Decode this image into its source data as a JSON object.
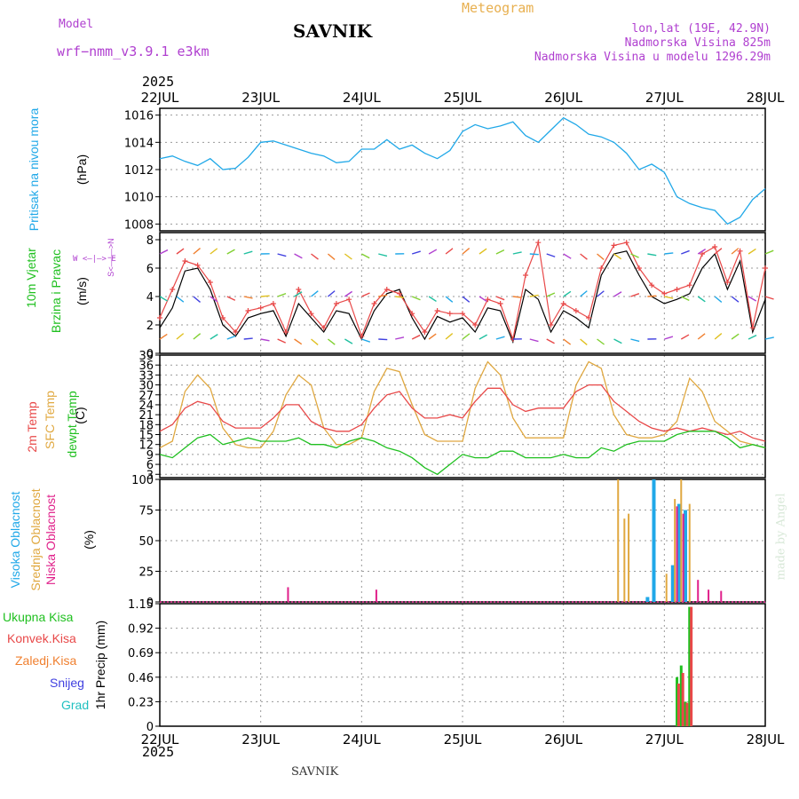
{
  "header": {
    "model_label": "Model",
    "model_name": "wrf−nmm_v3.9.1  e3km",
    "title": "SAVNIK",
    "meteogram": "Meteogram",
    "lonlat": "lon,lat (19E, 42.9N)",
    "elev": "Nadmorska Visina 825m",
    "elev_model": "Nadmorska Visina u modelu 1296.29m",
    "year_top": "2025",
    "year_bottom": "2025",
    "footer": "SAVNIK",
    "credit": "made by Angel"
  },
  "colors": {
    "pressure": "#20a8e8",
    "wind_label": "#20c020",
    "temp2m": "#e84848",
    "sfc": "#e0a840",
    "dewp": "#20c020",
    "cloud_high": "#20a8e8",
    "cloud_mid": "#e0a840",
    "cloud_low": "#e0208a",
    "rain_total": "#20c020",
    "rain_conv": "#e84848",
    "rain_strat": "#f08030",
    "snow": "#4040e0",
    "grad": "#20c0c0",
    "purple": "#b040d0"
  },
  "x_days": [
    "22JUL",
    "23JUL",
    "24JUL",
    "25JUL",
    "26JUL",
    "27JUL",
    "28JUL"
  ],
  "chart_data": [
    {
      "type": "line",
      "title": "Pritisak na nivou mora",
      "ylabel": "(hPa)",
      "ylim": [
        1007.5,
        1016.5
      ],
      "yticks": [
        1008,
        1010,
        1012,
        1014,
        1016
      ],
      "x_unit": "hours from 22JUL 00UTC",
      "series": [
        {
          "name": "Pritisak na nivou mora",
          "x": [
            0,
            3,
            6,
            9,
            12,
            15,
            18,
            21,
            24,
            27,
            30,
            33,
            36,
            39,
            42,
            45,
            48,
            51,
            54,
            57,
            60,
            63,
            66,
            69,
            72,
            75,
            78,
            81,
            84,
            87,
            90,
            93,
            96,
            99,
            102,
            105,
            108,
            111,
            114,
            117,
            120,
            123,
            126,
            129,
            132,
            135,
            138,
            141,
            144
          ],
          "values": [
            1012.8,
            1013.0,
            1012.6,
            1012.3,
            1012.8,
            1012.0,
            1012.1,
            1012.9,
            1014.0,
            1014.1,
            1013.8,
            1013.5,
            1013.2,
            1013.0,
            1012.5,
            1012.6,
            1013.5,
            1013.5,
            1014.2,
            1013.5,
            1013.8,
            1013.2,
            1012.8,
            1013.4,
            1014.8,
            1015.3,
            1015.0,
            1015.2,
            1015.5,
            1014.5,
            1014.0,
            1014.9,
            1015.8,
            1015.3,
            1014.6,
            1014.4,
            1014.0,
            1013.2,
            1012.0,
            1012.4,
            1011.8,
            1010.0,
            1009.5,
            1009.2,
            1009.0,
            1008.0,
            1008.5,
            1009.8,
            1010.6
          ]
        }
      ]
    },
    {
      "type": "line",
      "title": "10m Vjetar Brzina i Pravac",
      "ylabel": "(m/s)",
      "ylim": [
        0,
        8.5
      ],
      "yticks": [
        0,
        2,
        4,
        6,
        8
      ],
      "legend": [
        "W",
        "E",
        "N",
        "S"
      ],
      "series": [
        {
          "name": "Brzina",
          "x": [
            0,
            3,
            6,
            9,
            12,
            15,
            18,
            21,
            24,
            27,
            30,
            33,
            36,
            39,
            42,
            45,
            48,
            51,
            54,
            57,
            60,
            63,
            66,
            69,
            72,
            75,
            78,
            81,
            84,
            87,
            90,
            93,
            96,
            99,
            102,
            105,
            108,
            111,
            114,
            117,
            120,
            123,
            126,
            129,
            132,
            135,
            138,
            141,
            144
          ],
          "values": [
            1.8,
            3.2,
            5.8,
            6.0,
            4.5,
            2.0,
            1.2,
            2.5,
            2.8,
            3.0,
            1.2,
            3.5,
            2.5,
            1.5,
            3.0,
            2.8,
            1.0,
            3.0,
            4.2,
            4.5,
            2.5,
            1.0,
            2.6,
            2.2,
            2.5,
            1.5,
            3.2,
            3.0,
            0.8,
            4.5,
            3.8,
            1.5,
            3.0,
            2.5,
            1.8,
            5.5,
            7.0,
            7.2,
            5.5,
            4.0,
            3.5,
            3.8,
            4.2,
            6.0,
            7.0,
            4.5,
            6.5,
            1.5,
            3.8
          ]
        },
        {
          "name": "Udari",
          "x": [
            0,
            3,
            6,
            9,
            12,
            15,
            18,
            21,
            24,
            27,
            30,
            33,
            36,
            39,
            42,
            45,
            48,
            51,
            54,
            57,
            60,
            63,
            66,
            69,
            72,
            75,
            78,
            81,
            84,
            87,
            90,
            93,
            96,
            99,
            102,
            105,
            108,
            111,
            114,
            117,
            120,
            123,
            126,
            129,
            132,
            135,
            138,
            141,
            144
          ],
          "values": [
            2.5,
            4.5,
            6.5,
            6.2,
            5.0,
            2.5,
            1.5,
            3.0,
            3.2,
            3.5,
            1.5,
            4.5,
            2.8,
            1.8,
            3.5,
            3.8,
            1.2,
            3.5,
            4.5,
            4.2,
            2.8,
            1.5,
            3.0,
            2.8,
            2.8,
            2.0,
            3.8,
            3.5,
            1.0,
            5.5,
            7.8,
            2.0,
            3.5,
            3.0,
            2.5,
            6.0,
            7.6,
            7.8,
            6.0,
            4.8,
            4.2,
            4.5,
            4.8,
            7.0,
            7.5,
            5.0,
            7.2,
            1.8,
            6.0
          ]
        }
      ]
    },
    {
      "type": "line",
      "title": "Temp",
      "ylabel": "(C)",
      "ylim": [
        2,
        39
      ],
      "yticks": [
        3,
        6,
        9,
        12,
        15,
        18,
        21,
        24,
        27,
        30,
        33,
        36,
        39
      ],
      "series": [
        {
          "name": "2m Temp",
          "x": [
            0,
            3,
            6,
            9,
            12,
            15,
            18,
            21,
            24,
            27,
            30,
            33,
            36,
            39,
            42,
            45,
            48,
            51,
            54,
            57,
            60,
            63,
            66,
            69,
            72,
            75,
            78,
            81,
            84,
            87,
            90,
            93,
            96,
            99,
            102,
            105,
            108,
            111,
            114,
            117,
            120,
            123,
            126,
            129,
            132,
            135,
            138,
            141,
            144
          ],
          "values": [
            16,
            18,
            23,
            25,
            24,
            19,
            17,
            17,
            17,
            20,
            24,
            24,
            19,
            17,
            16,
            16,
            18,
            23,
            27,
            28,
            23,
            20,
            20,
            21,
            20,
            25,
            29,
            29,
            24,
            22,
            23,
            23,
            23,
            28,
            30,
            30,
            25,
            22,
            19,
            17,
            16,
            17,
            16,
            17,
            16,
            15,
            16,
            14,
            13
          ]
        },
        {
          "name": "SFC Temp",
          "x": [
            0,
            3,
            6,
            9,
            12,
            15,
            18,
            21,
            24,
            27,
            30,
            33,
            36,
            39,
            42,
            45,
            48,
            51,
            54,
            57,
            60,
            63,
            66,
            69,
            72,
            75,
            78,
            81,
            84,
            87,
            90,
            93,
            96,
            99,
            102,
            105,
            108,
            111,
            114,
            117,
            120,
            123,
            126,
            129,
            132,
            135,
            138,
            141,
            144
          ],
          "values": [
            11,
            13,
            28,
            33,
            29,
            17,
            12,
            11,
            11,
            16,
            27,
            33,
            30,
            17,
            12,
            12,
            14,
            28,
            35,
            34,
            24,
            15,
            13,
            13,
            13,
            29,
            37,
            33,
            20,
            14,
            14,
            14,
            14,
            30,
            37,
            35,
            21,
            15,
            14,
            14,
            15,
            19,
            32,
            28,
            19,
            16,
            13,
            12,
            11
          ]
        },
        {
          "name": "dewpt Temp",
          "x": [
            0,
            3,
            6,
            9,
            12,
            15,
            18,
            21,
            24,
            27,
            30,
            33,
            36,
            39,
            42,
            45,
            48,
            51,
            54,
            57,
            60,
            63,
            66,
            69,
            72,
            75,
            78,
            81,
            84,
            87,
            90,
            93,
            96,
            99,
            102,
            105,
            108,
            111,
            114,
            117,
            120,
            123,
            126,
            129,
            132,
            135,
            138,
            141,
            144
          ],
          "values": [
            9,
            8,
            11,
            14,
            15,
            12,
            13,
            14,
            13,
            13,
            13,
            14,
            12,
            12,
            11,
            13,
            14,
            13,
            11,
            10,
            8,
            5,
            3,
            6,
            9,
            8,
            8,
            10,
            10,
            8,
            8,
            8,
            9,
            8,
            8,
            11,
            10,
            12,
            13,
            13,
            13,
            15,
            16,
            16,
            16,
            14,
            11,
            12,
            11
          ]
        }
      ]
    },
    {
      "type": "bar",
      "title": "Oblacnost",
      "ylabel": "(%)",
      "ylim": [
        0,
        100
      ],
      "yticks": [
        0,
        25,
        50,
        75,
        100
      ],
      "series": [
        {
          "name": "Visoka Oblacnost",
          "x": [
            116.0,
            117.5,
            122.0,
            123.5,
            125.0
          ],
          "values": [
            4,
            100,
            30,
            80,
            75
          ]
        },
        {
          "name": "Srednja Oblacnost",
          "x": [
            109.0,
            110.5,
            111.5,
            120.5,
            122.5,
            124.0,
            126.0
          ],
          "values": [
            100,
            68,
            72,
            23,
            84,
            100,
            80
          ]
        },
        {
          "name": "Niska Oblacnost",
          "x": [
            30.5,
            51.5,
            123.0,
            124.5,
            128.0,
            130.5,
            133.5
          ],
          "values": [
            12,
            10,
            78,
            72,
            18,
            10,
            9
          ]
        }
      ]
    },
    {
      "type": "bar",
      "title": "1hr Precip",
      "ylabel": "(mm)",
      "ylim": [
        0,
        1.15
      ],
      "yticks": [
        0,
        0.23,
        0.46,
        0.69,
        0.92,
        1.15
      ],
      "series": [
        {
          "name": "Ukupna Kisa",
          "x": [
            123.0,
            124.0,
            125.0,
            126.0
          ],
          "values": [
            0.46,
            0.57,
            0.23,
            1.12
          ]
        },
        {
          "name": "Konvek.Kisa",
          "x": [
            123.4,
            124.4,
            125.4,
            126.4
          ],
          "values": [
            0.4,
            0.5,
            0.22,
            1.12
          ]
        },
        {
          "name": "Zaledj.Kisa",
          "x": [],
          "values": []
        },
        {
          "name": "Snijeg",
          "x": [],
          "values": []
        },
        {
          "name": "Grad",
          "x": [],
          "values": []
        }
      ]
    }
  ],
  "labels": {
    "pressure": "Pritisak na nivou mora",
    "pressure_unit": "(hPa)",
    "wind1": "10m Vjetar",
    "wind2": "Brzina i Pravac",
    "wind_unit": "(m/s)",
    "wind_dirs": "W  <—|—>  E",
    "wind_ns": "S<—|—>N",
    "temp2m": "2m Temp",
    "sfc": "SFC Temp",
    "dewp": "dewpt Temp",
    "temp_unit": "(C)",
    "cloud_high": "Visoka Oblacnost",
    "cloud_mid": "Srednja Oblacnost",
    "cloud_low": "Niska Oblacnost",
    "cloud_unit": "(%)",
    "rain_total": "Ukupna Kisa",
    "rain_conv": "Konvek.Kisa",
    "rain_strat": "Zaledj.Kisa",
    "snow": "Snijeg",
    "grad": "Grad",
    "precip_unit": "1hr Precip (mm)"
  }
}
